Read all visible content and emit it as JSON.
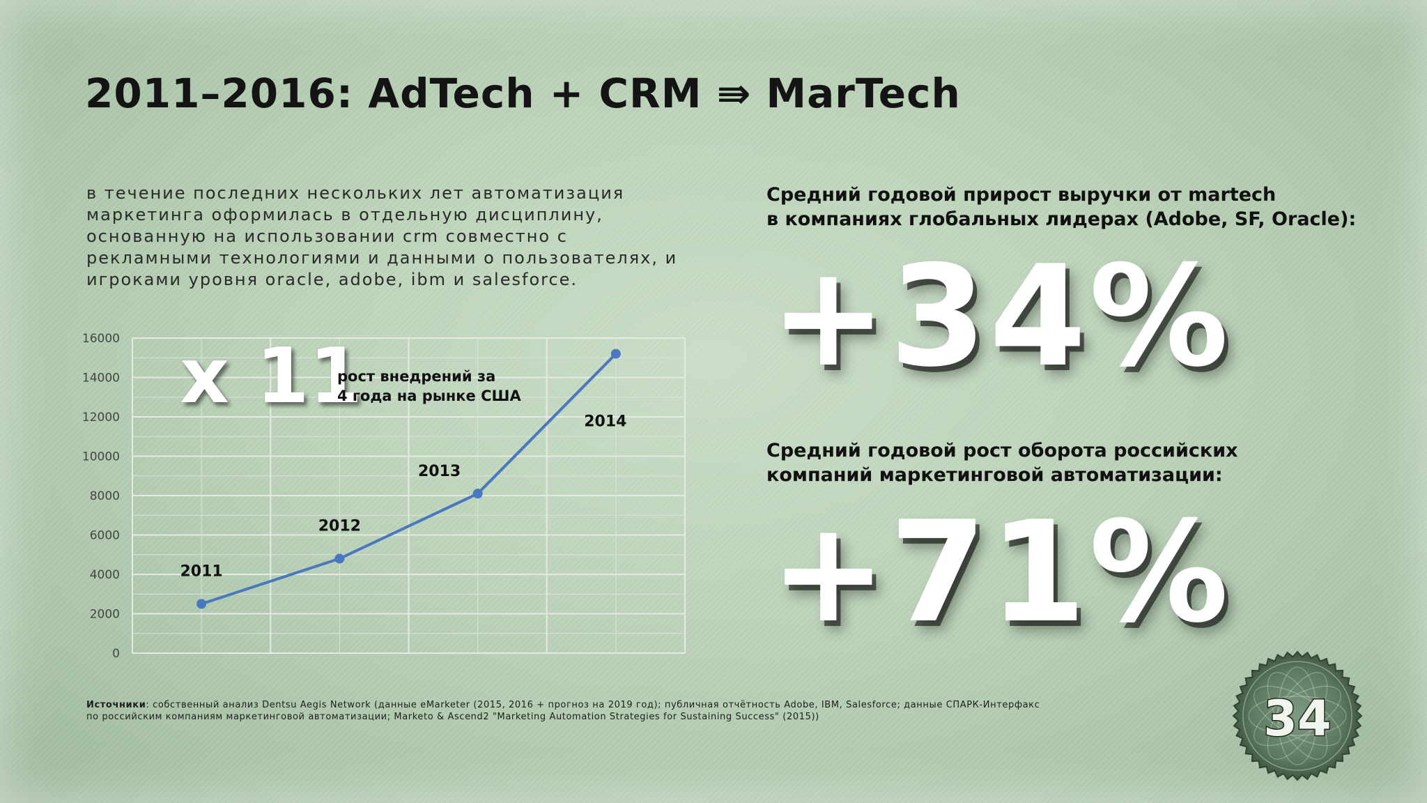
{
  "slide": {
    "title": "2011–2016: AdTech + CRM ⇛ MarTech",
    "intro": "В течение последних нескольких лет автоматизация маркетинга оформилась в отдельную дисциплину, основанную на использовании CRM совместно с рекламными технологиями и данными о пользователях, и игроками уровня Oracle, Adobe, IBM и SalesForce.",
    "callout_multiplier": "x 11",
    "callout_text_line1": "рост внедрений за",
    "callout_text_line2": "4 года на рынке США",
    "stat1_line1": "Средний годовой прирост выручки от martech",
    "stat1_line2": "в компаниях глобальных лидерах (Adobe, SF, Oracle):",
    "stat1_value": "+34%",
    "stat2_line1": "Средний годовой рост оборота российских",
    "stat2_line2": "компаний маркетинговой автоматизации:",
    "stat2_value": "+71%",
    "sources_label": "Источники",
    "sources_line1": ": собственный анализ Dentsu Aegis Network (данные eMarketer (2015, 2016 + прогноз на 2019 год); публичная отчётность Adobe, IBM, Salesforce; данные СПАРК-Интерфакс",
    "sources_line2": "по российским компаниям маркетинговой автоматизации; Marketo & Ascend2 \"Marketing Automation Strategies for Sustaining Success\" (2015))",
    "page_number": "34"
  },
  "colors": {
    "line": "#4a78c0",
    "grid": "#dfe3df",
    "text_dark": "#141414",
    "big_number": "#ffffff"
  },
  "chart_data": {
    "type": "line",
    "categories": [
      "2011",
      "2012",
      "2013",
      "2014"
    ],
    "series": [
      {
        "values": [
          2500,
          4800,
          8100,
          15200
        ]
      }
    ],
    "point_labels": [
      "2011",
      "2012",
      "2013",
      "2014"
    ],
    "yticks": [
      "0",
      "2000",
      "4000",
      "6000",
      "8000",
      "10000",
      "12000",
      "14000",
      "16000"
    ],
    "ylim": [
      0,
      16000
    ],
    "grid": true,
    "legend": "none"
  }
}
